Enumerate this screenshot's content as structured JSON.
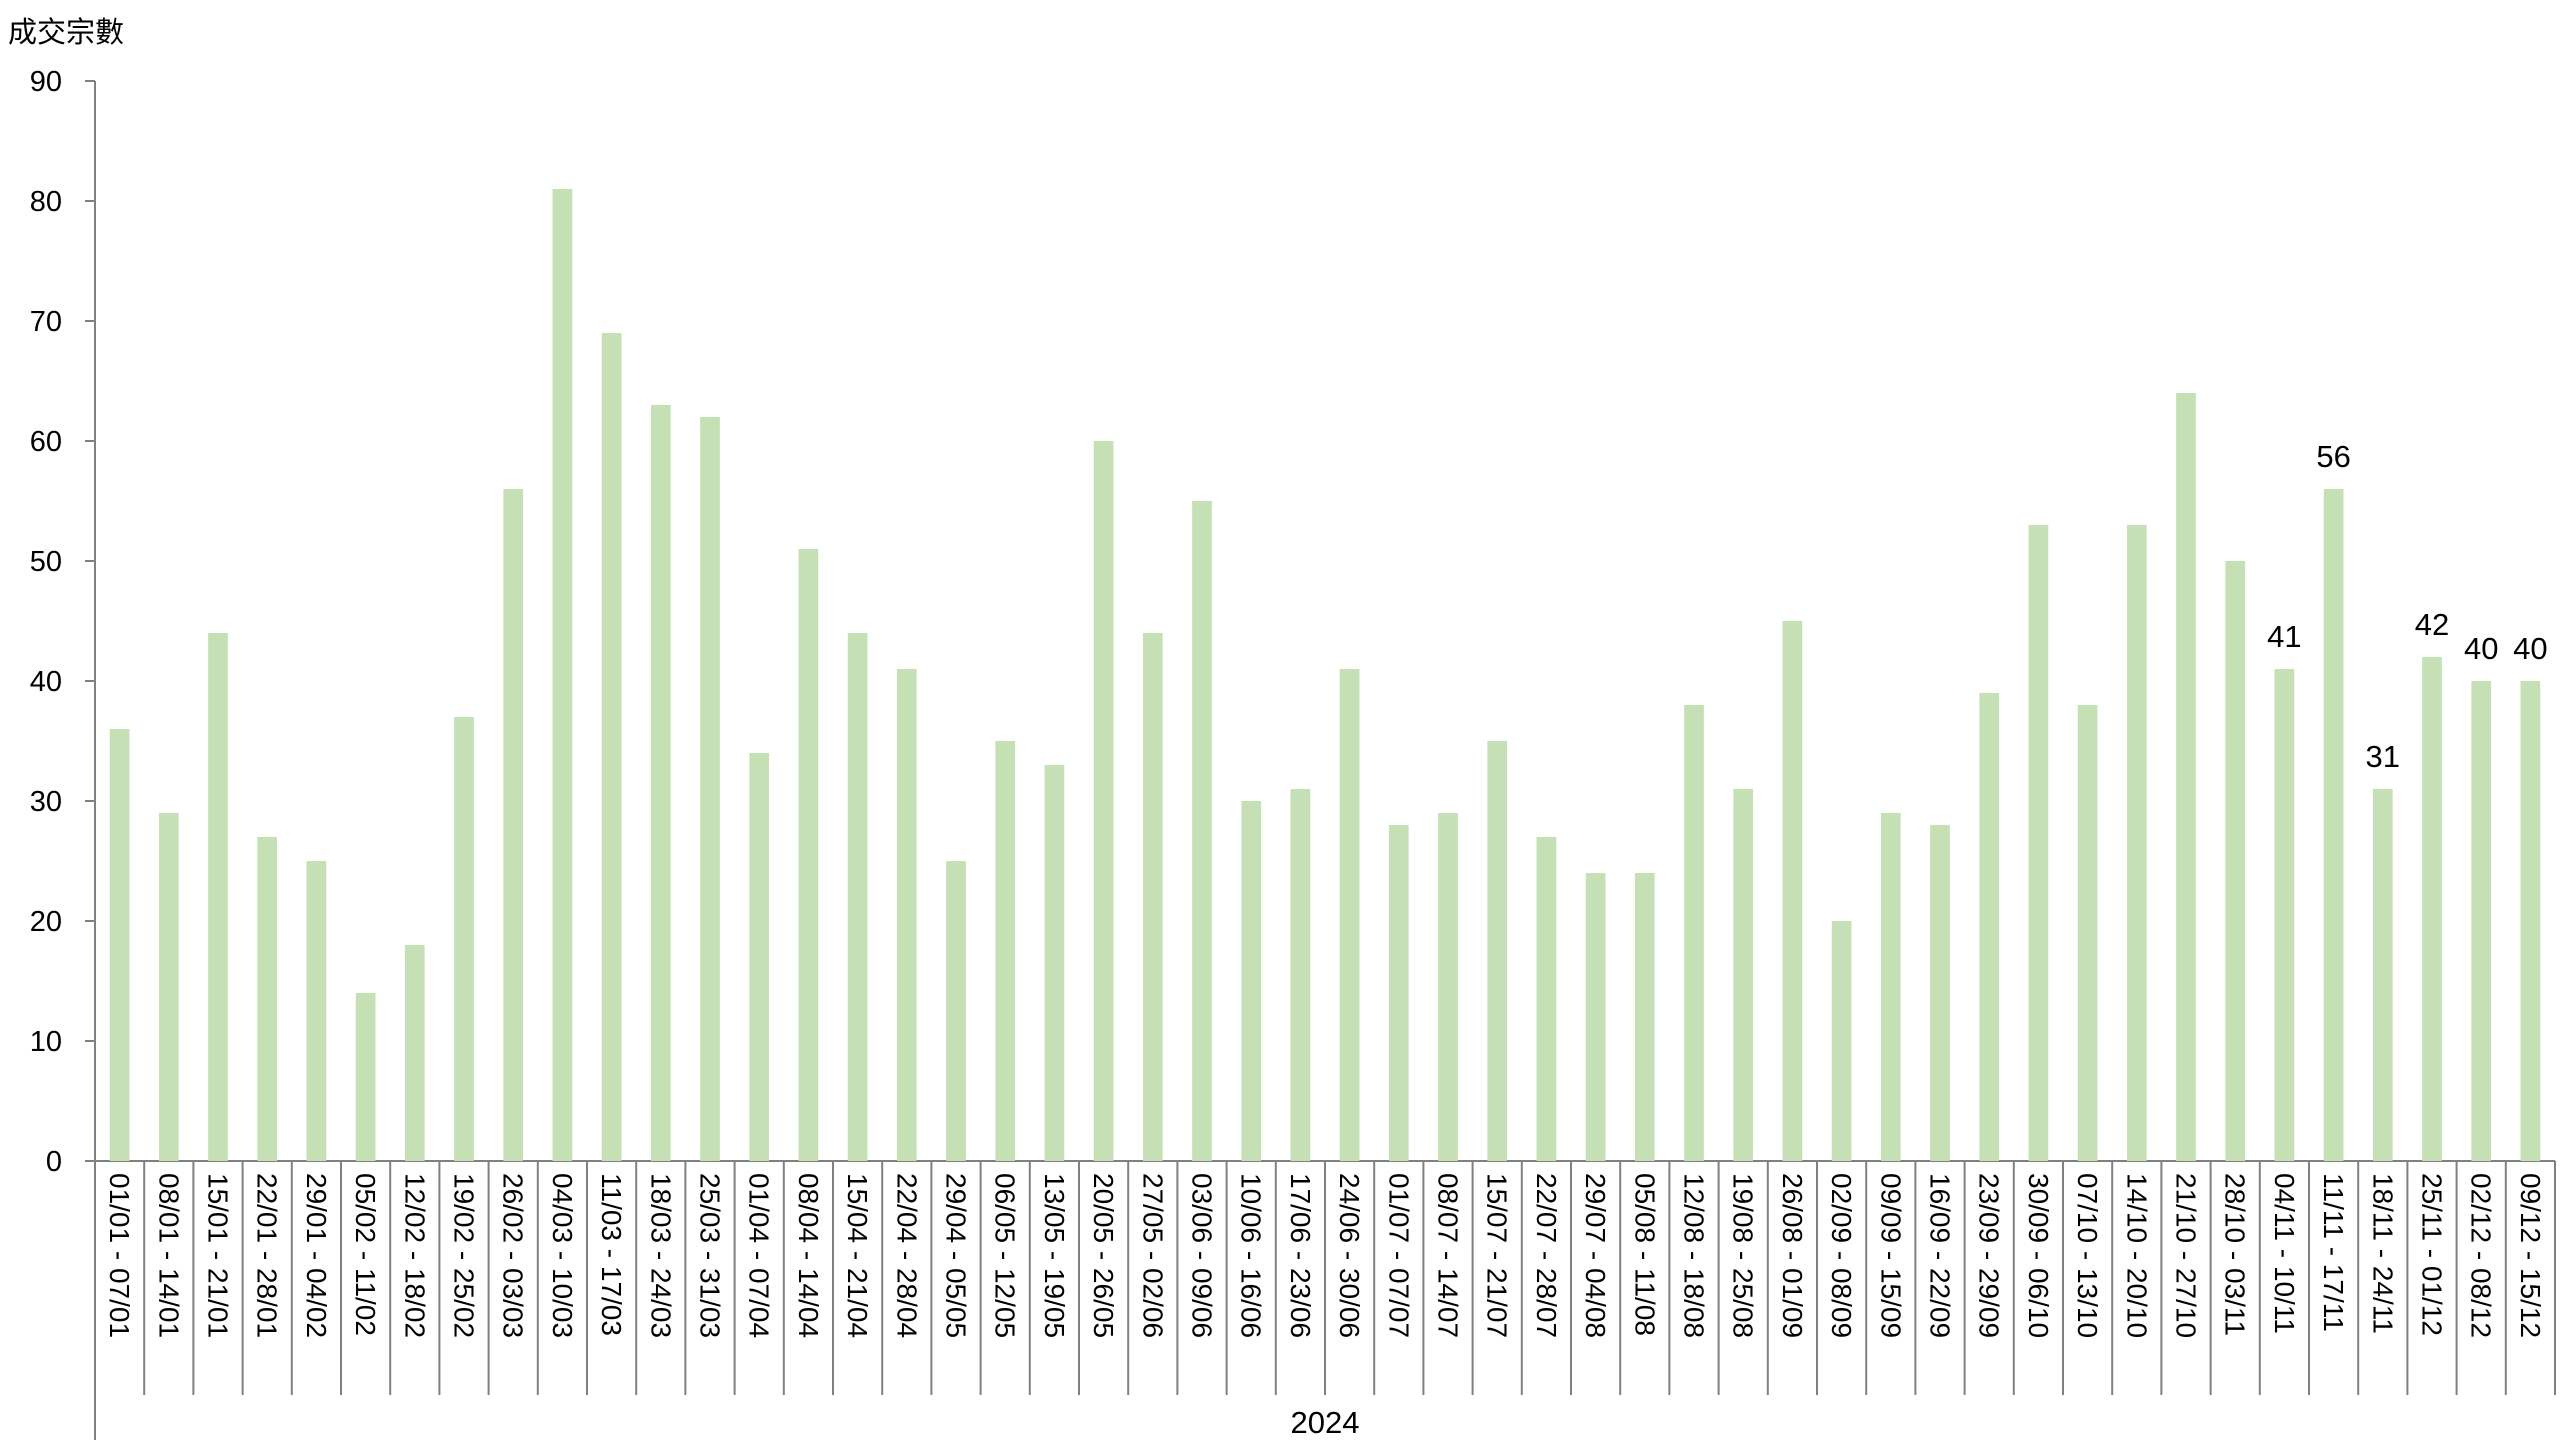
{
  "chart_data": {
    "type": "bar",
    "ylabel": "成交宗數",
    "group_label": "2024",
    "ylim": [
      0,
      90
    ],
    "y_ticks": [
      "0",
      "10",
      "20",
      "30",
      "40",
      "50",
      "60",
      "70",
      "80",
      "90"
    ],
    "bar_color": "#c5e0b4",
    "categories": [
      "01/01 - 07/01",
      "08/01 - 14/01",
      "15/01 - 21/01",
      "22/01 - 28/01",
      "29/01 - 04/02",
      "05/02 - 11/02",
      "12/02 - 18/02",
      "19/02 - 25/02",
      "26/02 - 03/03",
      "04/03 - 10/03",
      "11/03 - 17/03",
      "18/03 - 24/03",
      "25/03 - 31/03",
      "01/04 - 07/04",
      "08/04 - 14/04",
      "15/04 - 21/04",
      "22/04 - 28/04",
      "29/04 - 05/05",
      "06/05 - 12/05",
      "13/05 - 19/05",
      "20/05 - 26/05",
      "27/05 - 02/06",
      "03/06 - 09/06",
      "10/06 - 16/06",
      "17/06 - 23/06",
      "24/06 - 30/06",
      "01/07 - 07/07",
      "08/07 - 14/07",
      "15/07 - 21/07",
      "22/07 - 28/07",
      "29/07 - 04/08",
      "05/08 - 11/08",
      "12/08 - 18/08",
      "19/08 - 25/08",
      "26/08 - 01/09",
      "02/09 - 08/09",
      "09/09 - 15/09",
      "16/09 - 22/09",
      "23/09 - 29/09",
      "30/09 - 06/10",
      "07/10 - 13/10",
      "14/10 - 20/10",
      "21/10 - 27/10",
      "28/10 - 03/11",
      "04/11 - 10/11",
      "11/11 - 17/11",
      "18/11 - 24/11",
      "25/11 - 01/12",
      "02/12 - 08/12",
      "09/12 - 15/12"
    ],
    "values": [
      36,
      29,
      44,
      27,
      25,
      14,
      18,
      37,
      56,
      81,
      69,
      63,
      62,
      34,
      51,
      44,
      41,
      25,
      35,
      33,
      60,
      44,
      55,
      30,
      31,
      41,
      28,
      29,
      35,
      27,
      24,
      24,
      38,
      31,
      45,
      20,
      29,
      28,
      39,
      53,
      38,
      53,
      64,
      50,
      41,
      56,
      31,
      42,
      40,
      40
    ],
    "data_labels": [
      {
        "index": 44,
        "text": "41"
      },
      {
        "index": 45,
        "text": "56"
      },
      {
        "index": 46,
        "text": "31"
      },
      {
        "index": 47,
        "text": "42"
      },
      {
        "index": 48,
        "text": "40"
      },
      {
        "index": 49,
        "text": "40"
      }
    ]
  }
}
